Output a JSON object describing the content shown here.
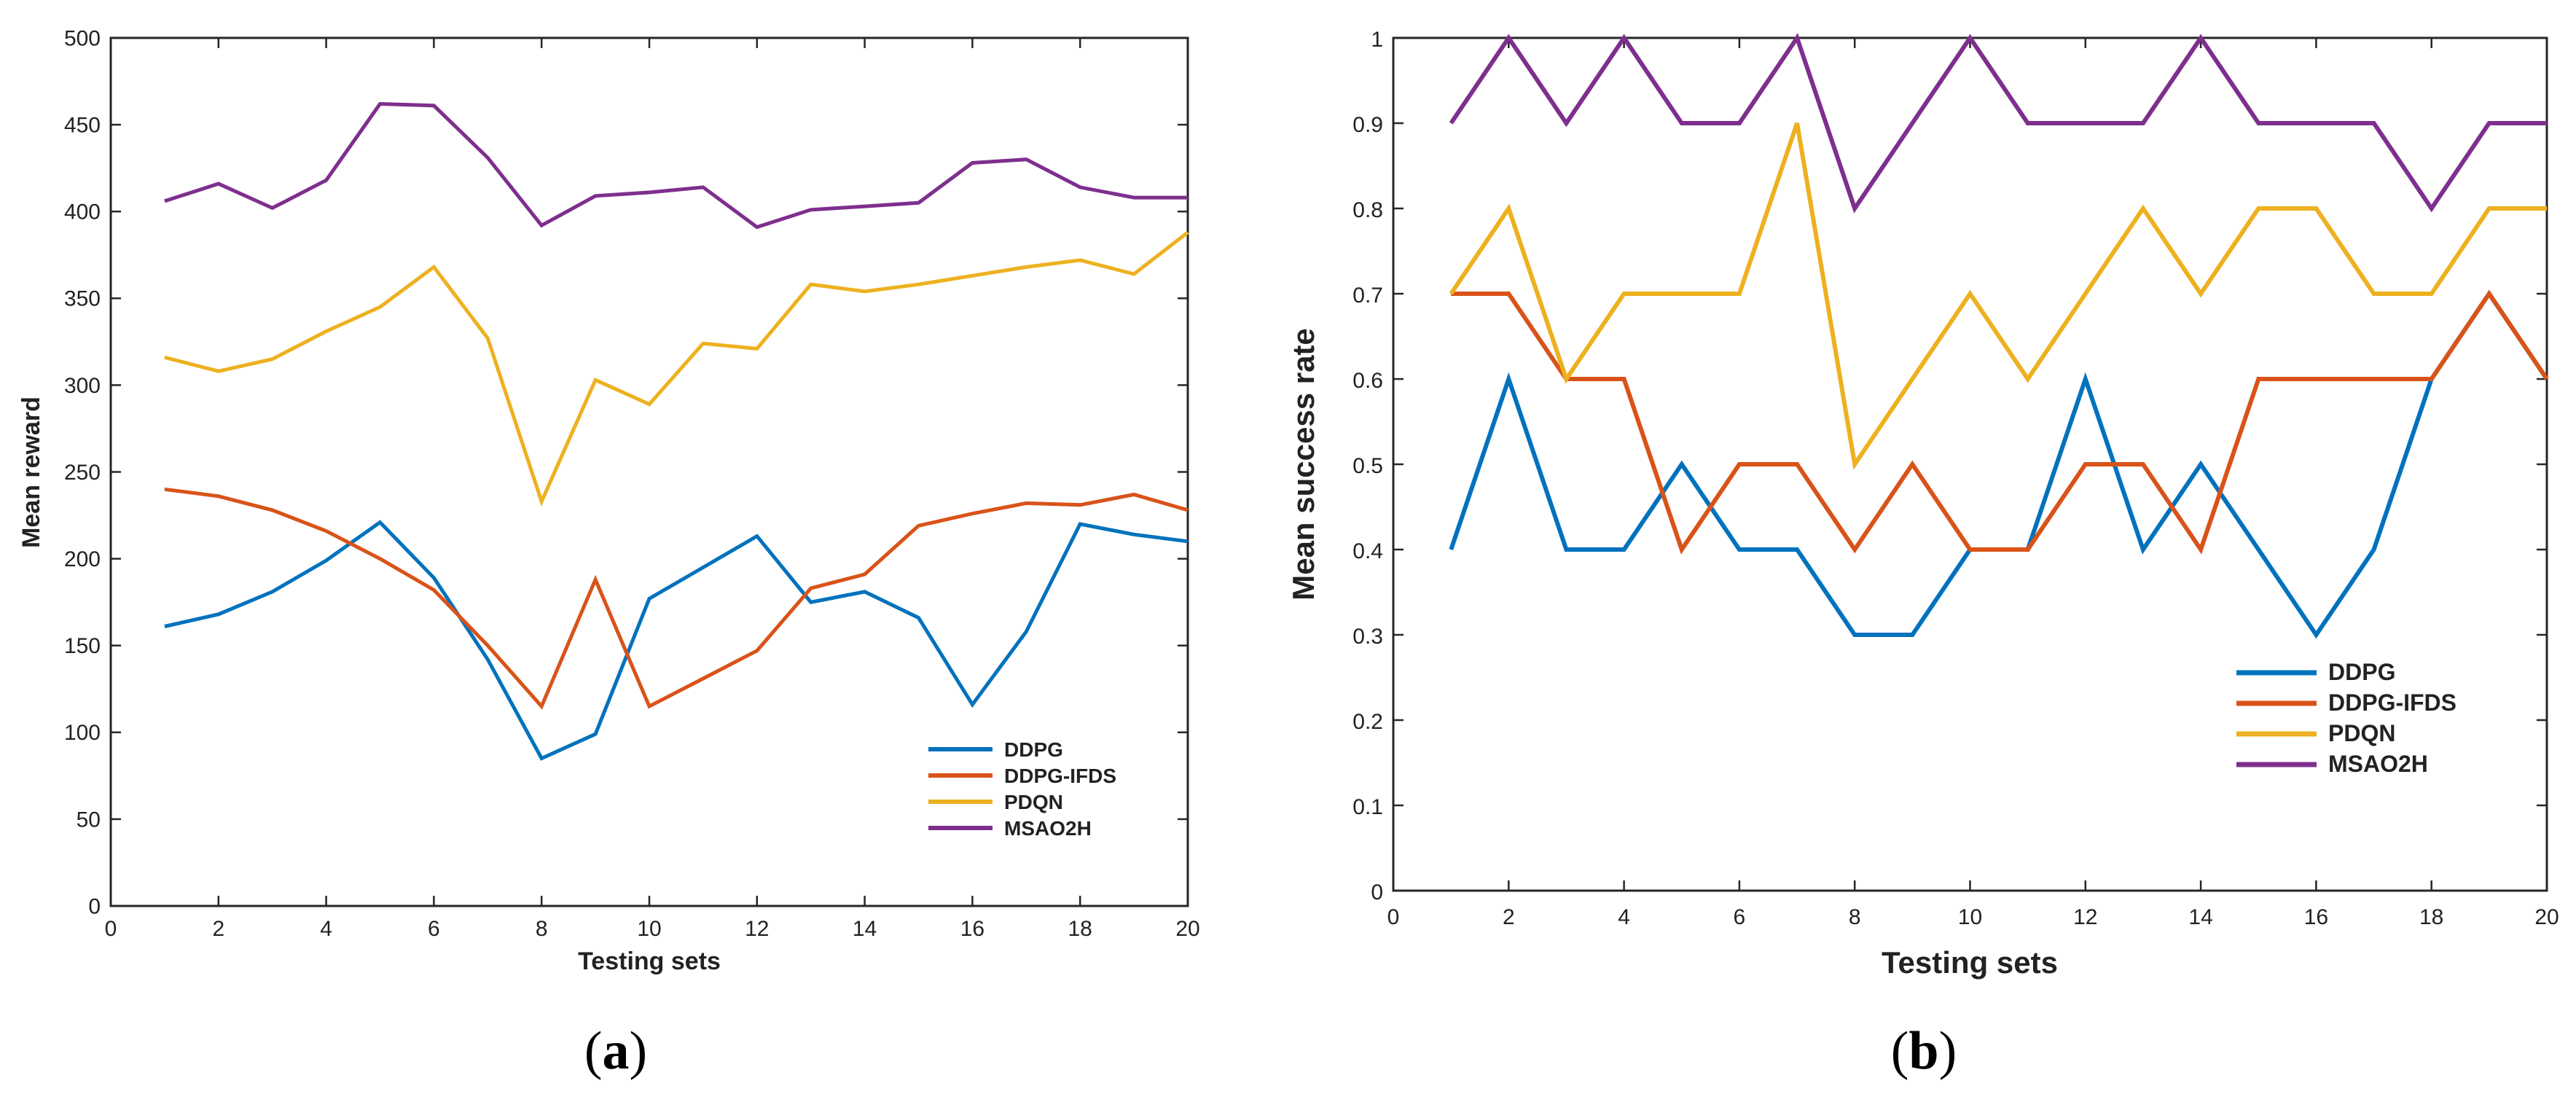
{
  "colors": {
    "DDPG": "#0072BD",
    "DDPG-IFDS": "#D95319",
    "PDQN": "#EDB120",
    "MSAO2H": "#7E2F8E"
  },
  "captions": {
    "a": {
      "open": "(",
      "letter": "a",
      "close": ")"
    },
    "b": {
      "open": "(",
      "letter": "b",
      "close": ")"
    }
  },
  "chart_data": [
    {
      "id": "a",
      "type": "line",
      "title": "",
      "xlabel": "Testing sets",
      "ylabel": "Mean reward",
      "xlim": [
        0,
        20
      ],
      "ylim": [
        0,
        500
      ],
      "xticks": [
        0,
        2,
        4,
        6,
        8,
        10,
        12,
        14,
        16,
        18,
        20
      ],
      "yticks": [
        0,
        50,
        100,
        150,
        200,
        250,
        300,
        350,
        400,
        450,
        500
      ],
      "grid": false,
      "legend_position": "bottom-right",
      "x": [
        1,
        2,
        3,
        4,
        5,
        6,
        7,
        8,
        9,
        10,
        11,
        12,
        13,
        14,
        15,
        16,
        17,
        18,
        19,
        20
      ],
      "series": [
        {
          "name": "DDPG",
          "values": [
            161,
            168,
            181,
            199,
            221,
            189,
            142,
            85,
            99,
            177,
            195,
            213,
            175,
            181,
            166,
            116,
            158,
            220,
            214,
            210
          ]
        },
        {
          "name": "DDPG-IFDS",
          "values": [
            240,
            236,
            228,
            216,
            200,
            182,
            150,
            115,
            188,
            115,
            131,
            147,
            183,
            191,
            219,
            226,
            232,
            231,
            237,
            228
          ]
        },
        {
          "name": "PDQN",
          "values": [
            316,
            308,
            315,
            331,
            345,
            368,
            327,
            233,
            303,
            289,
            324,
            321,
            358,
            354,
            358,
            363,
            368,
            372,
            364,
            388
          ]
        },
        {
          "name": "MSAO2H",
          "values": [
            406,
            416,
            402,
            418,
            462,
            461,
            431,
            392,
            409,
            411,
            414,
            391,
            401,
            403,
            405,
            428,
            430,
            414,
            408,
            408
          ]
        }
      ]
    },
    {
      "id": "b",
      "type": "line",
      "title": "",
      "xlabel": "Testing sets",
      "ylabel": "Mean success rate",
      "xlim": [
        0,
        20
      ],
      "ylim": [
        0,
        1
      ],
      "xticks": [
        0,
        2,
        4,
        6,
        8,
        10,
        12,
        14,
        16,
        18,
        20
      ],
      "yticks": [
        0,
        0.1,
        0.2,
        0.3,
        0.4,
        0.5,
        0.6,
        0.7,
        0.8,
        0.9,
        1
      ],
      "grid": false,
      "legend_position": "bottom-right",
      "x": [
        1,
        2,
        3,
        4,
        5,
        6,
        7,
        8,
        9,
        10,
        11,
        12,
        13,
        14,
        15,
        16,
        17,
        18,
        19,
        20
      ],
      "series": [
        {
          "name": "DDPG",
          "values": [
            0.4,
            0.6,
            0.4,
            0.4,
            0.5,
            0.4,
            0.4,
            0.3,
            0.3,
            0.4,
            0.4,
            0.6,
            0.4,
            0.5,
            0.4,
            0.3,
            0.4,
            0.6,
            0.7,
            0.6
          ]
        },
        {
          "name": "DDPG-IFDS",
          "values": [
            0.7,
            0.7,
            0.6,
            0.6,
            0.4,
            0.5,
            0.5,
            0.4,
            0.5,
            0.4,
            0.4,
            0.5,
            0.5,
            0.4,
            0.6,
            0.6,
            0.6,
            0.6,
            0.7,
            0.6
          ]
        },
        {
          "name": "PDQN",
          "values": [
            0.7,
            0.8,
            0.6,
            0.7,
            0.7,
            0.7,
            0.9,
            0.5,
            0.6,
            0.7,
            0.6,
            0.7,
            0.8,
            0.7,
            0.8,
            0.8,
            0.7,
            0.7,
            0.8,
            0.8
          ]
        },
        {
          "name": "MSAO2H",
          "values": [
            0.9,
            1.0,
            0.9,
            1.0,
            0.9,
            0.9,
            1.0,
            0.8,
            0.9,
            1.0,
            0.9,
            0.9,
            0.9,
            1.0,
            0.9,
            0.9,
            0.9,
            0.8,
            0.9,
            0.9
          ]
        }
      ]
    }
  ]
}
